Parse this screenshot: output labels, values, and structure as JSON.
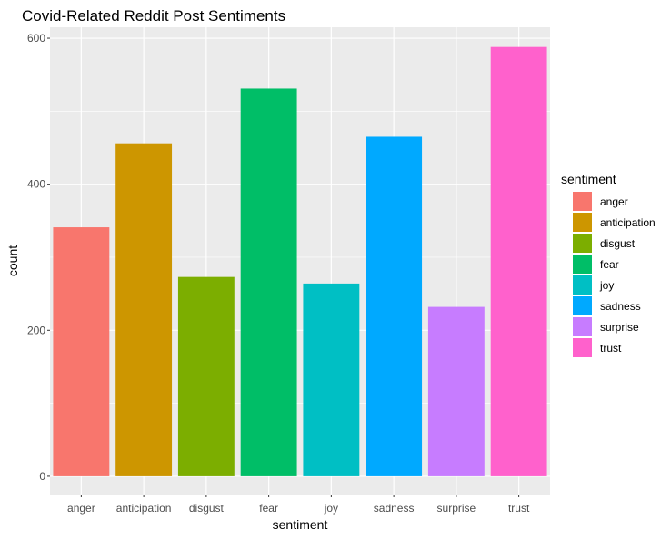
{
  "chart_data": {
    "type": "bar",
    "title": "Covid-Related Reddit Post Sentiments",
    "xlabel": "sentiment",
    "ylabel": "count",
    "categories": [
      "anger",
      "anticipation",
      "disgust",
      "fear",
      "joy",
      "sadness",
      "surprise",
      "trust"
    ],
    "values": [
      341,
      456,
      273,
      531,
      264,
      465,
      232,
      588
    ],
    "colors": [
      "#F8766D",
      "#CD9600",
      "#7CAE00",
      "#00BE67",
      "#00BFC4",
      "#00A9FF",
      "#C77CFF",
      "#FF61CC"
    ],
    "ylim": [
      -25,
      615
    ],
    "yticks": [
      0,
      200,
      400,
      600
    ],
    "yticks_minor": [
      100,
      300,
      500
    ],
    "grid": true,
    "panel_background": "#EBEBEB",
    "legend": {
      "title": "sentiment",
      "position": "right",
      "labels": [
        "anger",
        "anticipation",
        "disgust",
        "fear",
        "joy",
        "sadness",
        "surprise",
        "trust"
      ]
    }
  }
}
